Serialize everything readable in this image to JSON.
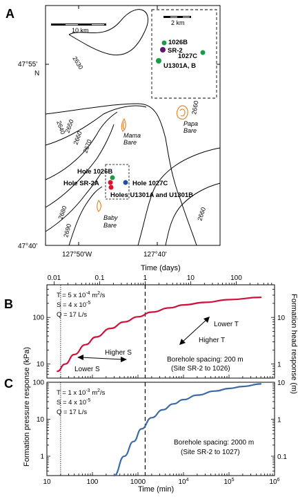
{
  "panel_labels": {
    "a": "A",
    "b": "B",
    "c": "C"
  },
  "map": {
    "scale_main": "10 km",
    "scale_inset": "2 km",
    "lat_top": "47°55'",
    "lat_top_hemi": "N",
    "lat_bottom": "47°40'",
    "lon_left": "127°50'W",
    "lon_right": "127°40'",
    "contours": [
      "2630",
      "2640",
      "2650",
      "2660",
      "2670",
      "2660",
      "2680",
      "2690",
      "2660"
    ],
    "features": {
      "mama": "Mama",
      "mama2": "Bare",
      "papa": "Papa",
      "papa2": "Bare",
      "baby": "Baby",
      "baby2": "Bare"
    },
    "holes": {
      "h1026b": "Hole 1026B",
      "sr2a": "Hole SR-2A",
      "h1027c": "Hole 1027C",
      "u1301": "Holes U1301A and U1301B"
    },
    "inset": {
      "i1026b": "1026B",
      "isr2": "SR-2",
      "i1027c": "1027C",
      "iu1301": "U1301A, B"
    },
    "colors": {
      "green": "#1a9a4a",
      "purple": "#5b1a6e",
      "red": "#e0102a",
      "blue": "#1f4fa8",
      "orange": "#e08a2e"
    }
  },
  "top_axis": {
    "title": "Time (days)",
    "ticks": [
      "0.01",
      "0.1",
      "1",
      "10",
      "100"
    ]
  },
  "bottom_axis": {
    "title": "Time (min)",
    "ticks_base": [
      "10",
      "100",
      "1000",
      "10",
      "10",
      "10"
    ],
    "ticks_exp": [
      "",
      "",
      "",
      "4",
      "5",
      "6"
    ]
  },
  "y_left_title": "Formation pressure response (kPa)",
  "y_right_title": "Formation head response (m)",
  "panel_b": {
    "yticks_left": [
      "10",
      "100"
    ],
    "yticks_right": [
      "1",
      "10"
    ],
    "params": {
      "t_base": "T = 5 x 10",
      "t_exp": "-4",
      "t_unit": " m",
      "t_unit_exp": "2",
      "t_unit2": "/s",
      "s_base": "S = 4 x 10",
      "s_exp": "-5",
      "q": "Q = 17 L/s"
    },
    "annotations": {
      "higher_s": "Higher S",
      "lower_s": "Lower S",
      "lower_t": "Lower T",
      "higher_t": "Higher T",
      "spacing": "Borehole spacing: 200 m",
      "sites": "(Site SR-2 to 1026)"
    },
    "line_color": "#d0103a"
  },
  "panel_c": {
    "yticks_left": [
      "1",
      "10",
      "100"
    ],
    "yticks_right": [
      "0.1",
      "1",
      "10"
    ],
    "params": {
      "t_base": "T = 1 x 10",
      "t_exp": "-3",
      "t_unit": " m",
      "t_unit_exp": "2",
      "t_unit2": "/s",
      "s_base": "S = 4 x 10",
      "s_exp": "-5",
      "q": "Q = 17 L/s"
    },
    "annotations": {
      "spacing": "Borehole spacing: 2000 m",
      "sites": "(Site SR-2 to 1027)"
    },
    "line_color": "#3a6aa8"
  },
  "chart_data": [
    {
      "type": "line",
      "title": "",
      "xlabel": "Time (min)",
      "ylabel": "Formation pressure response (kPa)",
      "xscale": "log",
      "yscale": "log",
      "xlim": [
        10,
        1000000
      ],
      "ylim": [
        5,
        500
      ],
      "series": [
        {
          "x": [
            17,
            25,
            40,
            70,
            120,
            250,
            500,
            1000,
            2000,
            5000,
            10000,
            30000,
            100000,
            500000
          ],
          "y": [
            7,
            10,
            16,
            26,
            38,
            58,
            80,
            103,
            130,
            160,
            185,
            210,
            240,
            270
          ]
        }
      ],
      "reference_lines_x": [
        20,
        1440
      ],
      "secondary_x": {
        "label": "Time (days)",
        "ticks": [
          0.01,
          0.1,
          1,
          10,
          100
        ]
      },
      "secondary_y": {
        "label": "Formation head response (m)",
        "ticks": [
          1,
          10
        ]
      }
    },
    {
      "type": "line",
      "title": "",
      "xlabel": "Time (min)",
      "ylabel": "Formation pressure response (kPa)",
      "xscale": "log",
      "yscale": "log",
      "xlim": [
        10,
        1000000
      ],
      "ylim": [
        0.3,
        100
      ],
      "series": [
        {
          "x": [
            300,
            500,
            800,
            1200,
            2000,
            3500,
            6000,
            10000,
            20000,
            50000,
            100000,
            200000,
            500000
          ],
          "y": [
            0.3,
            1.0,
            2.5,
            5.5,
            11,
            18,
            26,
            34,
            45,
            58,
            68,
            77,
            90
          ]
        }
      ],
      "reference_lines_x": [
        20,
        1440
      ],
      "secondary_y": {
        "label": "Formation head response (m)",
        "ticks": [
          0.1,
          1,
          10
        ]
      }
    }
  ]
}
